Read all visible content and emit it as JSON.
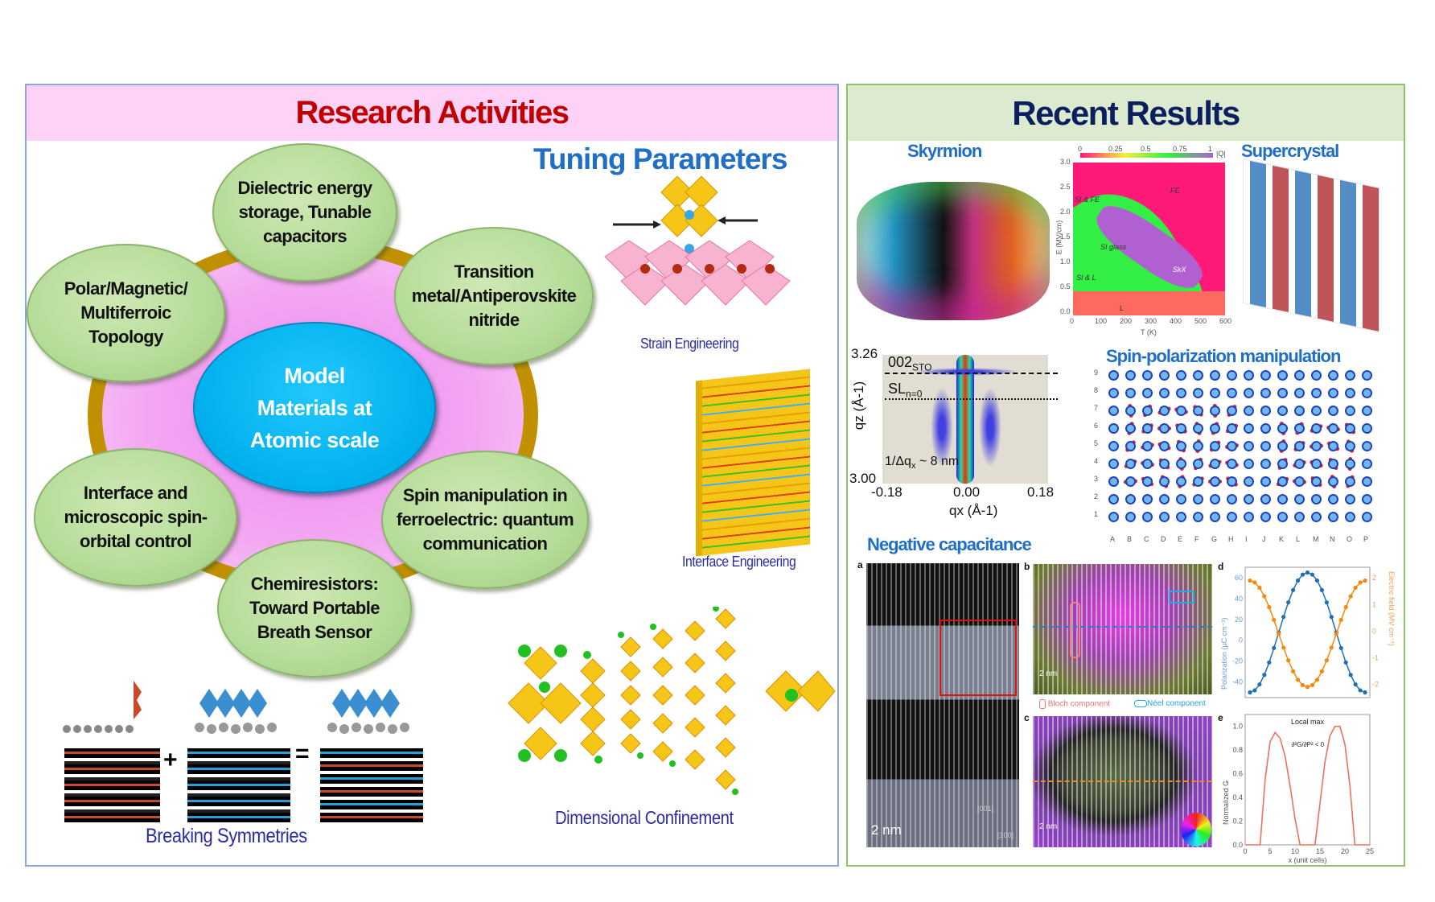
{
  "research": {
    "title": "Research Activities",
    "center": [
      "Model",
      "Materials at",
      "Atomic scale"
    ],
    "topics": [
      [
        "Dielectric energy",
        "storage, Tunable",
        "capacitors"
      ],
      [
        "Transition",
        "metal/Antiperovskite",
        "nitride"
      ],
      [
        "Polar/Magnetic/",
        "Multiferroic",
        "Topology"
      ],
      [
        "Interface and",
        "microscopic spin-",
        "orbital control"
      ],
      [
        "Spin manipulation in",
        "ferroelectric: quantum",
        "communication"
      ],
      [
        "Chemiresistors:",
        "Toward Portable",
        "Breath Sensor"
      ]
    ],
    "tuning_title": "Tuning Parameters",
    "tuning": {
      "strain": "Strain Engineering",
      "interface": "Interface Engineering",
      "confinement": "Dimensional Confinement",
      "symmetry": "Breaking Symmetries",
      "plus": "+",
      "equals": "="
    },
    "colors": {
      "header": "#fdd2f6",
      "title": "#c00000",
      "ring": "#c09000",
      "center": "#00b8f0",
      "bubble": "#b5dc98"
    }
  },
  "results": {
    "title": "Recent Results",
    "skyrmion": "Skyrmion",
    "supercrystal": "Supercrystal",
    "phase": {
      "regions": [
        "FE",
        "SI & FE",
        "SI glass",
        "SkX",
        "SI & L",
        "L"
      ],
      "colorbar_ticks": [
        "0",
        "0.25",
        "0.5",
        "0.75",
        "1"
      ],
      "colorbar_label": "|Q|",
      "yticks": [
        "3.0",
        "2.5",
        "2.0",
        "1.5",
        "1.0",
        "0.5",
        "0.0"
      ],
      "xticks": [
        "0",
        "100",
        "200",
        "300",
        "400",
        "500",
        "600"
      ],
      "xlabel": "T (K)",
      "ylabel": "E (MV/cm)"
    },
    "xrd": {
      "y_top": "3.26",
      "y_bottom": "3.00",
      "xticks": [
        "-0.18",
        "0.00",
        "0.18"
      ],
      "ylabel": "qz (Å-1)",
      "xlabel": "qx (Å-1)",
      "peak1": "002",
      "peak1_sub": "STO",
      "peak2": "SL",
      "peak2_sub": "n=0",
      "annotation": "1/Δq",
      "annotation_sub": "x",
      "annotation_tail": " ~ 8 nm"
    },
    "spin": {
      "title": "Spin-polarization manipulation",
      "rows": [
        "9",
        "8",
        "7",
        "6",
        "5",
        "4",
        "3",
        "2",
        "1"
      ],
      "cols": [
        "A",
        "B",
        "C",
        "D",
        "E",
        "F",
        "G",
        "H",
        "I",
        "J",
        "K",
        "L",
        "M",
        "N",
        "O",
        "P"
      ]
    },
    "negcap": {
      "title": "Negative capacitance",
      "panels": [
        "a",
        "b",
        "c",
        "d",
        "e"
      ],
      "scale": "2 nm",
      "dir1": "[001]",
      "dir2": "[100]",
      "legend_bloch": "Bloch component",
      "legend_neel": "Néel component",
      "local_max": "Local max",
      "condition": "∂²G/∂P² < 0"
    },
    "colors": {
      "header": "#dcebd0",
      "title": "#0b1f5e",
      "subtitle": "#1f6fc6"
    }
  },
  "chart_data": [
    {
      "type": "line",
      "panel": "d",
      "x": [
        0,
        1,
        2,
        3,
        4,
        5,
        6,
        7,
        8,
        9,
        10,
        11,
        12,
        13,
        14,
        15,
        16,
        17,
        18,
        19,
        20,
        21,
        22,
        23,
        24
      ],
      "series": [
        {
          "values": [
            -50,
            -48,
            -42.3,
            -33.2,
            -21.3,
            -7.4,
            7.5,
            22.4,
            36.3,
            48.2,
            57.3,
            63,
            65,
            63,
            57.3,
            48.2,
            36.3,
            22.4,
            7.5,
            -7.4,
            -21.3,
            -33.2,
            -42.3,
            -48,
            -50
          ],
          "color": "#1f6fb4",
          "axis": "left"
        },
        {
          "values": [
            1.9,
            1.83,
            1.63,
            1.31,
            0.9,
            0.42,
            -0.1,
            -0.62,
            -1.1,
            -1.51,
            -1.83,
            -2.03,
            -2.1,
            -2.03,
            -1.83,
            -1.51,
            -1.1,
            -0.62,
            -0.1,
            0.42,
            0.9,
            1.31,
            1.63,
            1.83,
            1.9
          ],
          "color": "#f5890f",
          "axis": "right"
        }
      ],
      "ylabel": "Polarization (μC cm⁻²)",
      "y2label": "Electric field (MV cm⁻¹)",
      "yticks": [
        "60",
        "40",
        "20",
        "0",
        "-20",
        "-40"
      ],
      "y2ticks": [
        "2",
        "1",
        "0",
        "-1",
        "-2"
      ],
      "ylim": [
        -55,
        70
      ],
      "y2lim": [
        -2.5,
        2.4
      ],
      "xlim": [
        -1,
        25
      ]
    },
    {
      "type": "line",
      "panel": "e",
      "x": [
        0,
        1,
        2,
        3,
        4,
        5,
        6,
        7,
        8,
        9,
        10,
        11,
        12,
        13,
        14,
        15,
        16,
        17,
        18,
        19,
        20,
        21,
        22,
        23,
        24,
        25
      ],
      "values": [
        0,
        0,
        0,
        0,
        0.55,
        0.87,
        0.95,
        0.9,
        0.75,
        0.5,
        0.22,
        0,
        0,
        0,
        0,
        0.35,
        0.7,
        0.92,
        1.0,
        1.0,
        0.85,
        0.5,
        0,
        0,
        0,
        0
      ],
      "color": "#f0705a",
      "ylabel": "Normalized G",
      "xlabel": "x (unit cells)",
      "yticks": [
        "1.0",
        "0.8",
        "0.6",
        "0.4",
        "0.2",
        "0.0"
      ],
      "xticks": [
        "0",
        "5",
        "10",
        "15",
        "20",
        "25"
      ],
      "ylim": [
        0,
        1.1
      ],
      "xlim": [
        0,
        25
      ]
    }
  ]
}
